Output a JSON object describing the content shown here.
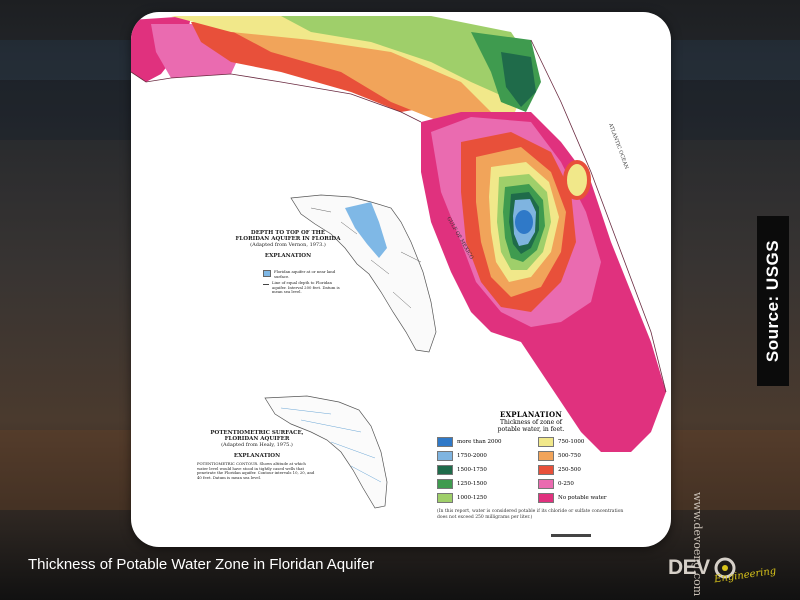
{
  "slide": {
    "caption": "Thickness of Potable Water Zone in Floridan Aquifer",
    "source": "Source: USGS",
    "website": "www.devoeng.com",
    "logo_text": "DEV",
    "logo_sub": "Engineering"
  },
  "map": {
    "gulf_label": "GULF OF MEXICO",
    "ocean_label": "ATLANTIC OCEAN",
    "colors": {
      "more_than_2000": "#2f79c8",
      "c1750_2000": "#7fb4e0",
      "c1500_1750": "#1f6b4a",
      "c1250_1500": "#3f9b4f",
      "c1000_1250": "#9fcf6a",
      "c750_1000": "#f1e88a",
      "c500_750": "#f1a45a",
      "c250_500": "#e8503a",
      "c0_250": "#ea6bb0",
      "no_potable": "#e0317e"
    }
  },
  "inset_depth": {
    "title_line1": "DEPTH TO TOP OF THE",
    "title_line2": "FLORIDAN AQUIFER IN FLORIDA",
    "title_line3": "(Adapted from Vernon, 1973.)",
    "explanation": "EXPLANATION",
    "item1": "Floridan aquifer at or near land surface.",
    "item2": "Line of equal depth to Floridan aquifer. Interval 200 feet. Datum is mean sea level."
  },
  "inset_potentiometric": {
    "title_line1": "POTENTIOMETRIC SURFACE,",
    "title_line2": "FLORIDAN AQUIFER",
    "title_line3": "(Adapted from Healy, 1975.)",
    "explanation": "EXPLANATION",
    "item1": "POTENTIOMETRIC CONTOUR. Shows altitude at which water level would have stood in tightly cased wells that penetrate the Floridan aquifer. Contour intervals 10, 20, and 40 feet. Datum is mean sea level."
  },
  "legend": {
    "title": "EXPLANATION",
    "subtitle_line1": "Thickness of zone of",
    "subtitle_line2": "potable water, in feet.",
    "items_left": [
      {
        "label": "more than 2000",
        "color": "#2f79c8"
      },
      {
        "label": "1750-2000",
        "color": "#7fb4e0"
      },
      {
        "label": "1500-1750",
        "color": "#1f6b4a"
      },
      {
        "label": "1250-1500",
        "color": "#3f9b4f"
      },
      {
        "label": "1000-1250",
        "color": "#9fcf6a"
      }
    ],
    "items_right": [
      {
        "label": "750-1000",
        "color": "#f1e88a"
      },
      {
        "label": "500-750",
        "color": "#f1a45a"
      },
      {
        "label": "250-500",
        "color": "#e8503a"
      },
      {
        "label": "0-250",
        "color": "#ea6bb0"
      },
      {
        "label": "No potable water",
        "color": "#e0317e"
      }
    ],
    "note": "(In this report, water is considered potable if its chloride or sulfate concentration does not exceed 250 milligrams per liter.)"
  }
}
